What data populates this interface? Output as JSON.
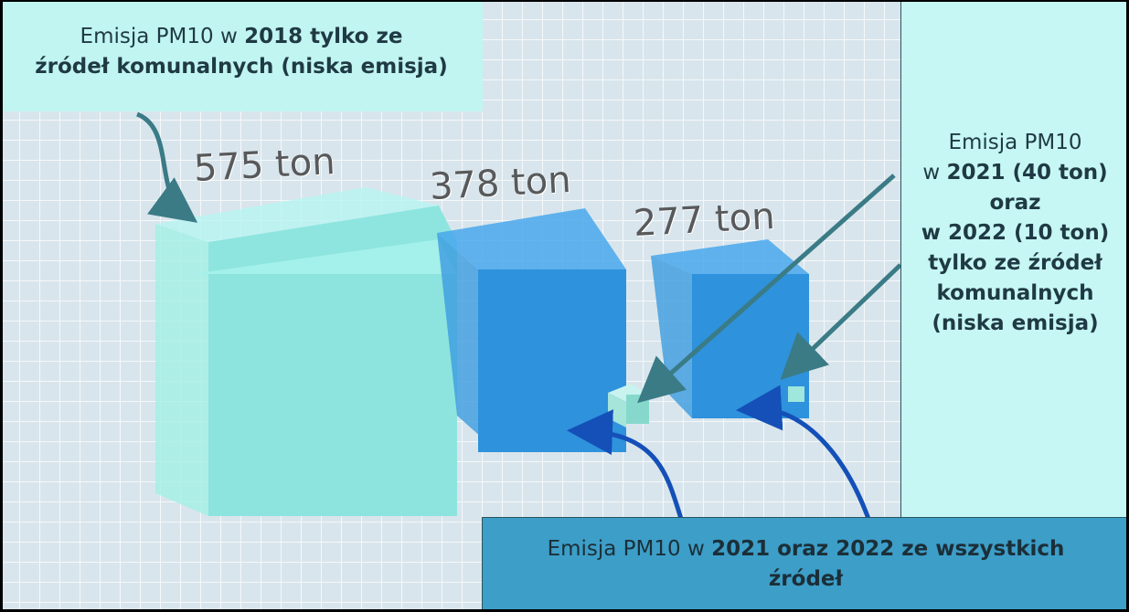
{
  "cube_labels": [
    "575 ton",
    "378 ton",
    "277 ton"
  ],
  "callouts": {
    "top_left": {
      "lines": [
        {
          "runs": [
            {
              "text": "Emisja PM10 w ",
              "bold": false
            },
            {
              "text": "2018 tylko ze",
              "bold": true
            }
          ]
        },
        {
          "runs": [
            {
              "text": "źródeł komunalnych (niska emisja)",
              "bold": true
            }
          ]
        }
      ]
    },
    "right": {
      "lines": [
        {
          "runs": [
            {
              "text": "Emisja PM10",
              "bold": false
            }
          ]
        },
        {
          "runs": [
            {
              "text": "w ",
              "bold": false
            },
            {
              "text": "2021 (40 ton)",
              "bold": true
            }
          ]
        },
        {
          "runs": [
            {
              "text": "oraz",
              "bold": true
            }
          ]
        },
        {
          "runs": [
            {
              "text": "w 2022 (10 ton)",
              "bold": true
            }
          ]
        },
        {
          "runs": [
            {
              "text": "tylko ze źródeł",
              "bold": true
            }
          ]
        },
        {
          "runs": [
            {
              "text": "komunalnych",
              "bold": true
            }
          ]
        },
        {
          "runs": [
            {
              "text": "(niska emisja)",
              "bold": true
            }
          ]
        }
      ]
    },
    "bottom": {
      "lines": [
        {
          "runs": [
            {
              "text": "Emisja PM10 w ",
              "bold": false
            },
            {
              "text": "2021 oraz 2022 ze wszystkich",
              "bold": true
            }
          ]
        },
        {
          "runs": [
            {
              "text": "źródeł",
              "bold": true
            }
          ]
        }
      ]
    }
  }
}
